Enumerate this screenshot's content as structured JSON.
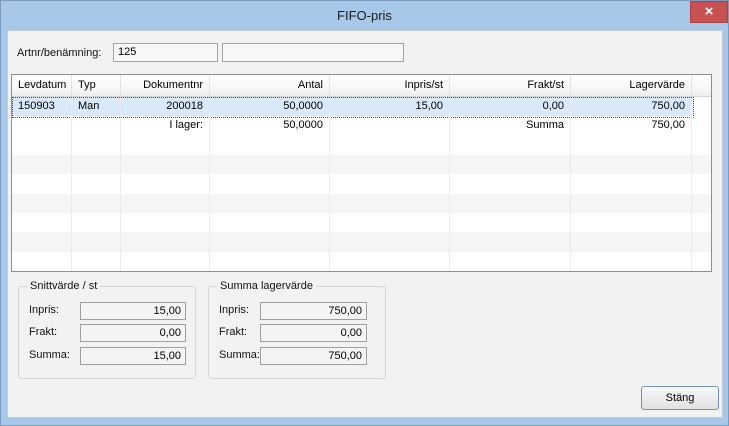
{
  "window": {
    "title": "FIFO-pris",
    "close_glyph": "×"
  },
  "form": {
    "artnr_label": "Artnr/benämning:",
    "artnr_value": "125",
    "benamning_value": ""
  },
  "table": {
    "columns": [
      {
        "label": "Levdatum",
        "align": "left"
      },
      {
        "label": "Typ",
        "align": "left"
      },
      {
        "label": "Dokumentnr",
        "align": "right"
      },
      {
        "label": "Antal",
        "align": "right"
      },
      {
        "label": "Inpris/st",
        "align": "right"
      },
      {
        "label": "Frakt/st",
        "align": "right"
      },
      {
        "label": "Lagervärde",
        "align": "right"
      }
    ],
    "rows": [
      {
        "selected": true,
        "cells": [
          "150903",
          "Man",
          "200018",
          "50,0000",
          "15,00",
          "0,00",
          "750,00"
        ]
      },
      {
        "selected": false,
        "cells": [
          "",
          "",
          "I lager:",
          "50,0000",
          "",
          "Summa",
          "750,00"
        ]
      }
    ],
    "empty_row_count": 7
  },
  "groups": [
    {
      "title": "Snittvärde / st",
      "fields": [
        {
          "label": "Inpris:",
          "value": "15,00"
        },
        {
          "label": "Frakt:",
          "value": "0,00"
        },
        {
          "label": "Summa:",
          "value": "15,00"
        }
      ]
    },
    {
      "title": "Summa lagervärde",
      "fields": [
        {
          "label": "Inpris:",
          "value": "750,00"
        },
        {
          "label": "Frakt:",
          "value": "0,00"
        },
        {
          "label": "Summa:",
          "value": "750,00"
        }
      ]
    }
  ],
  "footer": {
    "close_button": "Stäng"
  },
  "colors": {
    "titlebar_blue": "#a7c8e8",
    "close_red": "#c75050",
    "selection_blue": "#d8eafa",
    "client_bg": "#f2f2f2"
  }
}
